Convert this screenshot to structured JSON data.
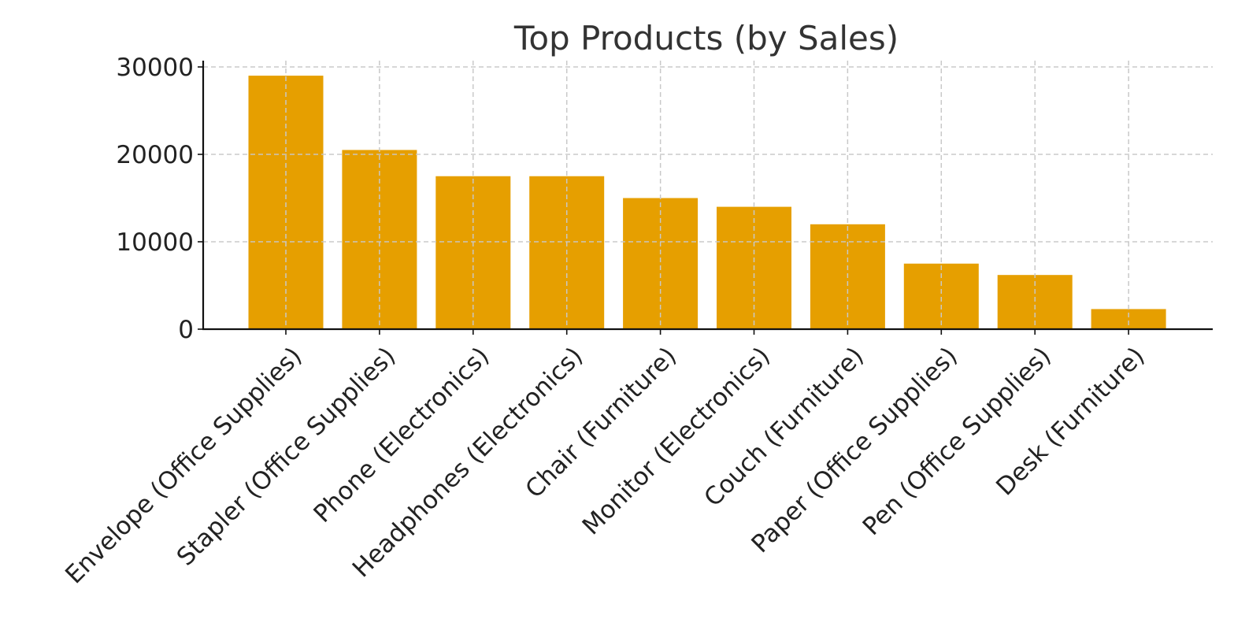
{
  "chart_data": {
    "type": "bar",
    "title": "Top Products (by Sales)",
    "xlabel": "",
    "ylabel": "",
    "categories": [
      "Envelope (Office Supplies)",
      "Stapler (Office Supplies)",
      "Phone (Electronics)",
      "Headphones (Electronics)",
      "Chair (Furniture)",
      "Monitor (Electronics)",
      "Couch (Furniture)",
      "Paper (Office Supplies)",
      "Pen (Office Supplies)",
      "Desk (Furniture)"
    ],
    "values": [
      29000,
      20500,
      17500,
      17500,
      15000,
      14000,
      12000,
      7500,
      6200,
      2300
    ],
    "ylim": [
      0,
      30000
    ],
    "yticks": [
      "0",
      "10000",
      "20000",
      "30000"
    ],
    "grid": true,
    "bar_color": "#E69F00",
    "legend": "none"
  }
}
